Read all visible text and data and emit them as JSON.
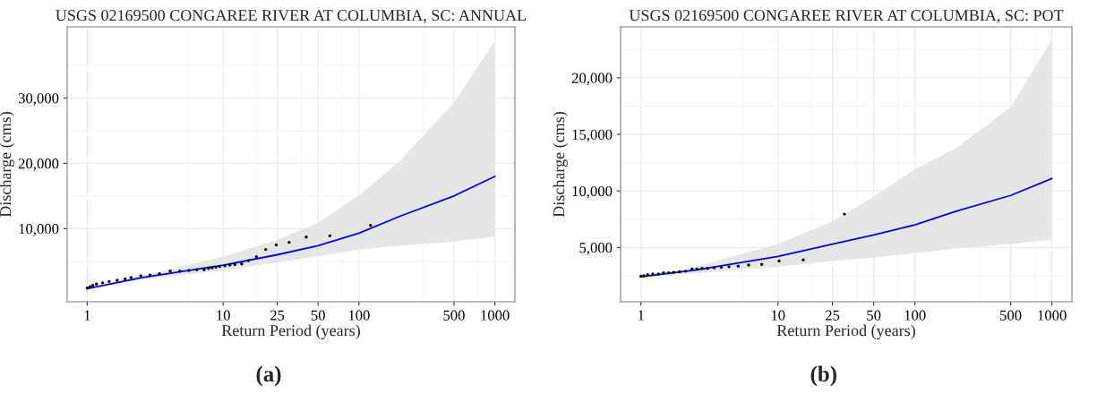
{
  "chart_data": [
    {
      "type": "scatter",
      "title": "USGS 02169500 CONGAREE RIVER AT COLUMBIA, SC: ANNUAL",
      "xlabel": "Return Period (years)",
      "ylabel": "Discharge (cms)",
      "log": "x",
      "grid": true,
      "xlim": [
        0.712,
        1404
      ],
      "xticks": [
        1,
        10,
        25,
        50,
        100,
        500,
        1000
      ],
      "ylim": [
        -1200,
        40900
      ],
      "yticks": [
        {
          "value": 10000,
          "label": "10,000"
        },
        {
          "value": 20000,
          "label": "20,000"
        },
        {
          "value": 30000,
          "label": "30,000"
        }
      ],
      "series": [
        {
          "type": "line",
          "color": "#0000ff",
          "x": [
            1,
            2.5,
            10,
            25,
            50,
            100,
            200,
            500,
            1000
          ],
          "values": [
            800,
            2500,
            4400,
            6000,
            7400,
            9300,
            11900,
            15000,
            18000
          ],
          "lower": [
            800,
            2200,
            3600,
            4800,
            5800,
            6800,
            7400,
            8000,
            8800
          ],
          "upper": [
            800,
            2800,
            5700,
            8300,
            10900,
            15100,
            20400,
            29300,
            38800
          ]
        },
        {
          "color": "#000000",
          "marker": "circle",
          "x": [
            1.0,
            1.05,
            1.1,
            1.17,
            1.3,
            1.45,
            1.66,
            1.9,
            2.1,
            2.48,
            2.9,
            3.4,
            4.08,
            4.8,
            5.6,
            6.4,
            7.25,
            7.81,
            8.29,
            8.85,
            9.44,
            10.3,
            11.2,
            12.2,
            13.7,
            15.3,
            17.6,
            20.6,
            24.6,
            30.6,
            40.9,
            61.1,
            121.6
          ],
          "values": [
            900,
            1100,
            1300,
            1500,
            1700,
            1900,
            2100,
            2300,
            2500,
            2800,
            2900,
            3100,
            3500,
            3500,
            3600,
            3700,
            3700,
            3900,
            4000,
            4100,
            4200,
            4300,
            4400,
            4500,
            4600,
            5100,
            5700,
            6800,
            7500,
            7900,
            8700,
            8900,
            10500
          ]
        }
      ],
      "annotations": [
        "(a)"
      ]
    },
    {
      "type": "scatter",
      "title": "USGS 02169500 CONGAREE RIVER AT COLUMBIA, SC: POT",
      "xlabel": "Return Period (years)",
      "ylabel": "Discharge (cms)",
      "log": "x",
      "grid": true,
      "xlim": [
        0.71,
        1400
      ],
      "xticks": [
        1,
        10,
        25,
        50,
        100,
        500,
        1000
      ],
      "ylim": [
        200,
        24500
      ],
      "yticks": [
        {
          "value": 5000,
          "label": "5,000"
        },
        {
          "value": 10000,
          "label": "10,000"
        },
        {
          "value": 15000,
          "label": "15,000"
        },
        {
          "value": 20000,
          "label": "20,000"
        }
      ],
      "series": [
        {
          "type": "line",
          "color": "#0000ff",
          "x": [
            1,
            2.5,
            10,
            25,
            50,
            100,
            200,
            500,
            1000
          ],
          "values": [
            2400,
            3000,
            4200,
            5300,
            6100,
            7000,
            8200,
            9600,
            11100
          ],
          "lower": [
            2400,
            2700,
            3300,
            3800,
            4100,
            4500,
            4900,
            5300,
            5700
          ],
          "upper": [
            2400,
            3300,
            5300,
            7300,
            9500,
            11900,
            13800,
            17400,
            23400
          ]
        },
        {
          "color": "#000000",
          "marker": "circle",
          "x": [
            1.0,
            1.05,
            1.12,
            1.22,
            1.34,
            1.46,
            1.59,
            1.73,
            1.91,
            2.12,
            2.36,
            2.56,
            2.79,
            3.06,
            3.42,
            3.86,
            4.39,
            5.13,
            6.11,
            7.62,
            10.2,
            15.3,
            30.6
          ],
          "values": [
            2450,
            2500,
            2600,
            2650,
            2650,
            2750,
            2750,
            2800,
            2850,
            2900,
            3100,
            3100,
            3150,
            3150,
            3200,
            3250,
            3300,
            3350,
            3450,
            3500,
            3800,
            3900,
            7950
          ]
        }
      ],
      "annotations": [
        "(b)"
      ]
    }
  ]
}
